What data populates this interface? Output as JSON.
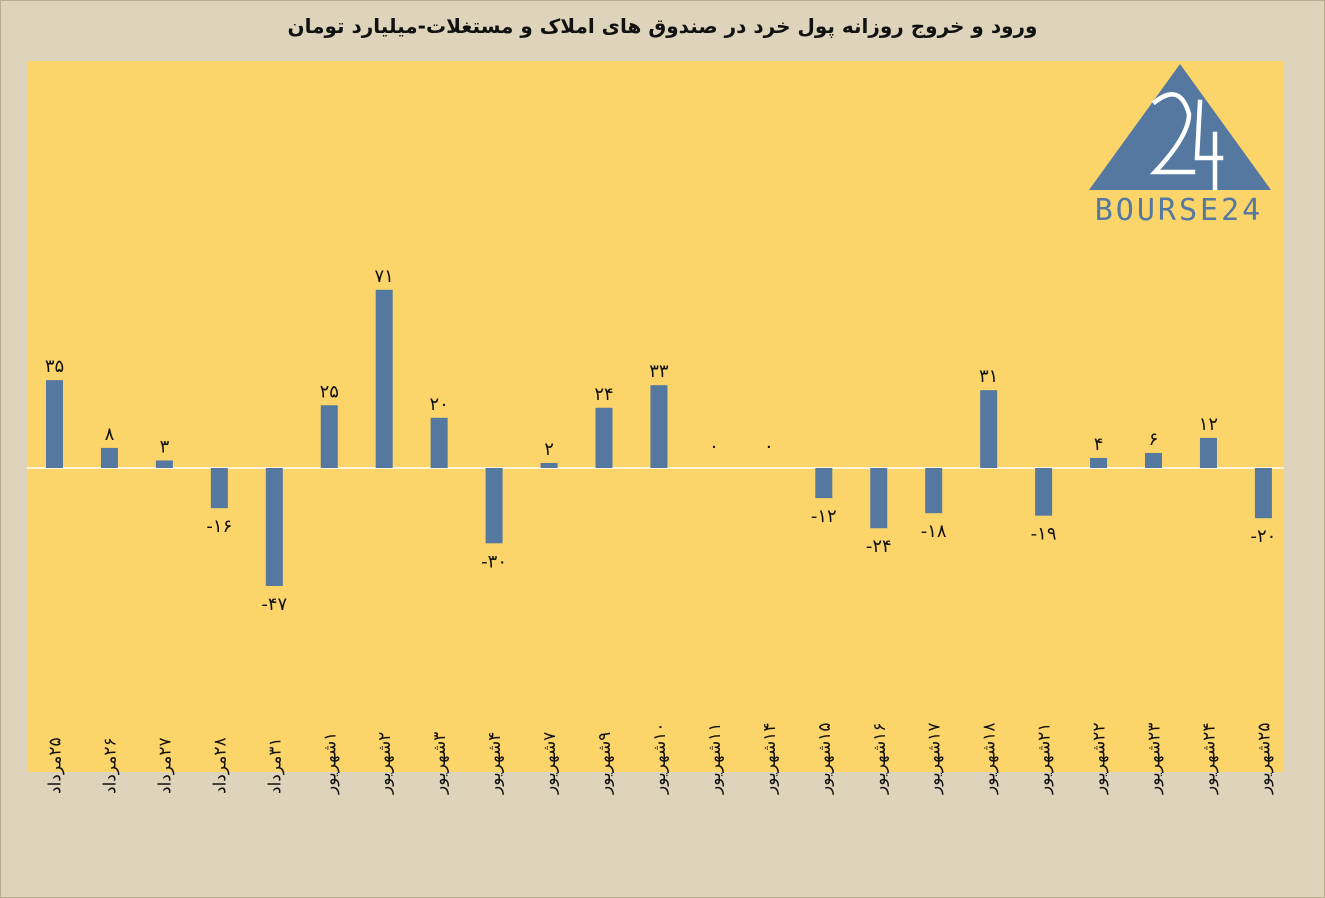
{
  "title": "ورود و خروج روزانه پول خرد در صندوق های املاک و مستغلات-میلیارد تومان",
  "logo": {
    "text": "BOURSE24",
    "mark": "24",
    "color": "#5478a0"
  },
  "chart_data": {
    "type": "bar",
    "categories": [
      "۲۵مرداد",
      "۲۶مرداد",
      "۲۷مرداد",
      "۲۸مرداد",
      "۳۱مرداد",
      "۱شهریور",
      "۲شهریور",
      "۳شهریور",
      "۴شهریور",
      "۷شهریور",
      "۹شهریور",
      "۱۰شهریور",
      "۱۱شهریور",
      "۱۴شهریور",
      "۱۵شهریور",
      "۱۶شهریور",
      "۱۷شهریور",
      "۱۸شهریور",
      "۲۱شهریور",
      "۲۲شهریور",
      "۲۳شهریور",
      "۲۴شهریور",
      "۲۵شهریور"
    ],
    "values": [
      35,
      8,
      3,
      -16,
      -47,
      25,
      71,
      20,
      -30,
      2,
      24,
      33,
      0,
      0,
      -12,
      -24,
      -18,
      31,
      -19,
      4,
      6,
      12,
      -20
    ],
    "value_labels": [
      "۳۵",
      "۸",
      "۳",
      "-۱۶",
      "-۴۷",
      "۲۵",
      "۷۱",
      "۲۰",
      "-۳۰",
      "۲",
      "۲۴",
      "۳۳",
      "۰",
      "۰",
      "-۱۲",
      "-۲۴",
      "-۱۸",
      "۳۱",
      "-۱۹",
      "۴",
      "۶",
      "۱۲",
      "-۲۰"
    ],
    "title": "ورود و خروج روزانه پول خرد در صندوق های املاک و مستغلات-میلیارد تومان",
    "xlabel": "",
    "ylabel": "",
    "ylim": [
      -60,
      80
    ],
    "bar_color": "#5478a0",
    "plot_background": "#fbd46a",
    "page_background": "#ded4bb",
    "grid": false,
    "legend": "none"
  }
}
